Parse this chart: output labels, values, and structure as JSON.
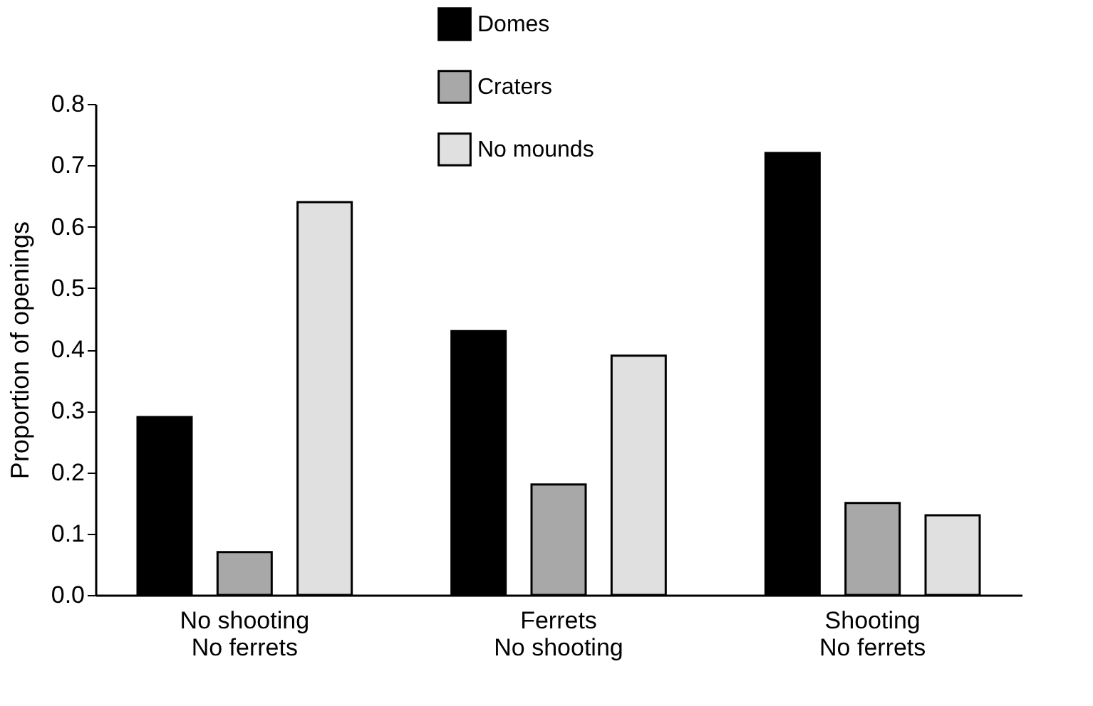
{
  "chart_data": {
    "type": "bar",
    "ylabel": "Proportion of openings",
    "categories": [
      "No shooting\nNo ferrets",
      "Ferrets\nNo shooting",
      "Shooting\nNo ferrets"
    ],
    "series": [
      {
        "name": "Domes",
        "color": "#000000",
        "values": [
          0.29,
          0.43,
          0.72
        ]
      },
      {
        "name": "Craters",
        "color": "#a8a8a8",
        "values": [
          0.07,
          0.18,
          0.15
        ]
      },
      {
        "name": "No mounds",
        "color": "#e0e0e0",
        "values": [
          0.64,
          0.39,
          0.13
        ]
      }
    ],
    "ylim": [
      0,
      0.8
    ],
    "yticks": [
      {
        "value": 0,
        "label": "0.0"
      },
      0.1,
      0.2,
      0.3,
      0.4,
      0.5,
      0.6,
      0.7,
      0.8
    ],
    "grid": false,
    "legend": "top"
  }
}
